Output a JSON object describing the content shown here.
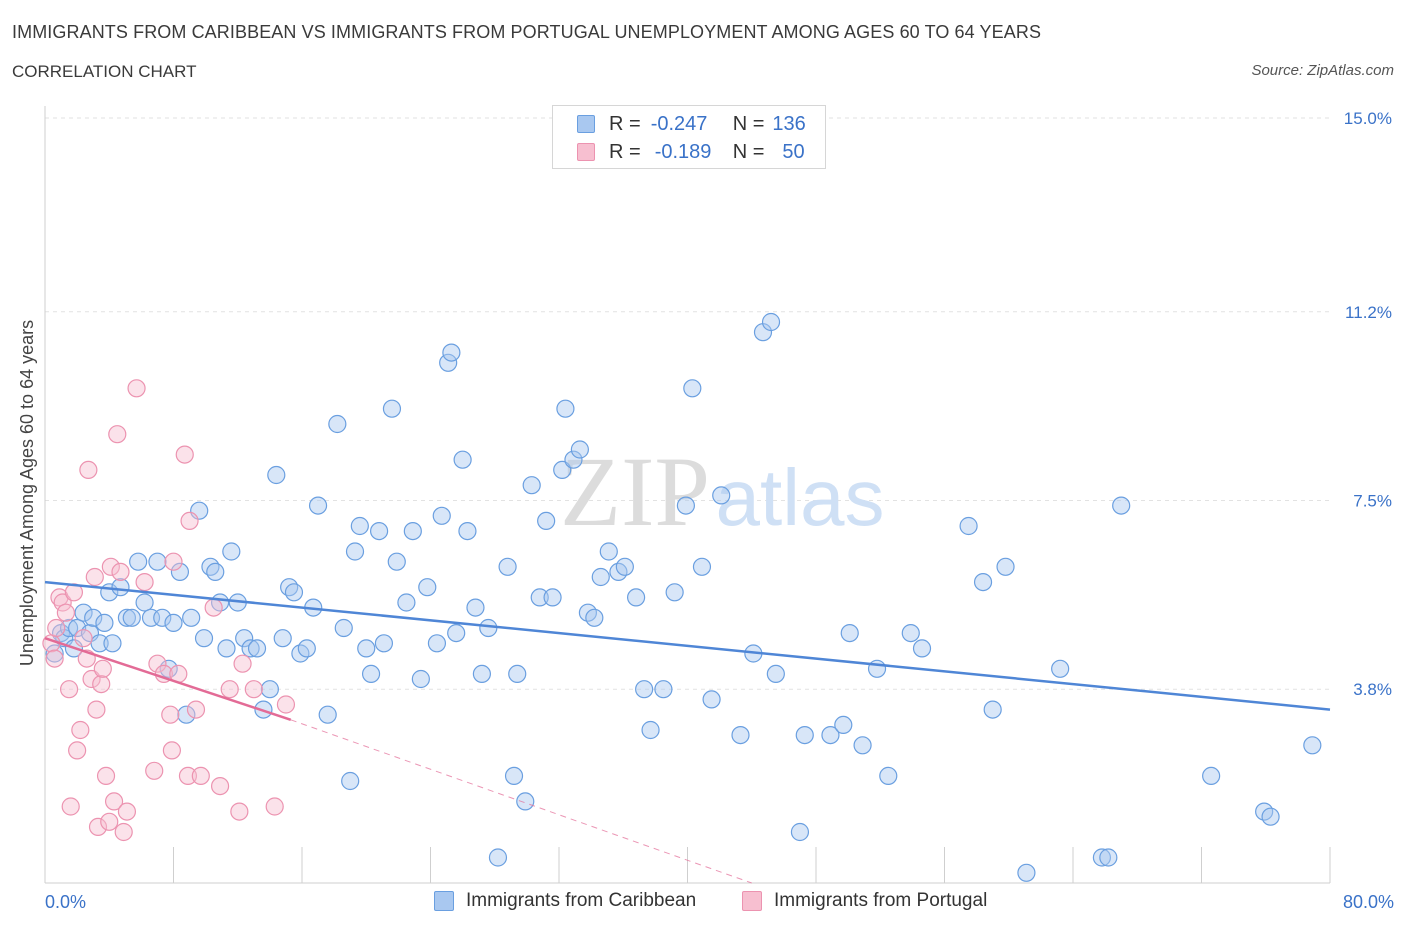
{
  "title": "IMMIGRANTS FROM CARIBBEAN VS IMMIGRANTS FROM PORTUGAL UNEMPLOYMENT AMONG AGES 60 TO 64 YEARS",
  "subtitle": "CORRELATION CHART",
  "source": "Source: ZipAtlas.com",
  "watermark": {
    "zip": "ZIP",
    "atlas": "atlas"
  },
  "legend": {
    "r_label": "R =",
    "n_label": "N =",
    "series": [
      {
        "name": "Immigrants from Caribbean",
        "r": "-0.247",
        "n": "136",
        "fill": "#a9c8f0",
        "stroke": "#6a9fe0"
      },
      {
        "name": "Immigrants from Portugal",
        "r": "-0.189",
        "n": "50",
        "fill": "#f7bfd0",
        "stroke": "#ec93b0"
      }
    ]
  },
  "chart_data": {
    "type": "scatter",
    "title": "IMMIGRANTS FROM CARIBBEAN VS IMMIGRANTS FROM PORTUGAL UNEMPLOYMENT AMONG AGES 60 TO 64 YEARS",
    "xlabel": "",
    "ylabel": "Unemployment Among Ages 60 to 64 years",
    "xlim": [
      0,
      80
    ],
    "ylim": [
      0,
      15
    ],
    "x_tick_labels": [
      "0.0%",
      "80.0%"
    ],
    "y_ticks": [
      3.8,
      7.5,
      11.2,
      15.0
    ],
    "y_tick_labels": [
      "3.8%",
      "7.5%",
      "11.2%",
      "15.0%"
    ],
    "grid": true,
    "legend_position": "top-center",
    "series": [
      {
        "name": "Immigrants from Caribbean",
        "color": "#4f86d6",
        "trend": {
          "x": [
            0,
            80
          ],
          "y": [
            5.9,
            3.4
          ]
        },
        "points": [
          [
            0.6,
            4.5
          ],
          [
            1.0,
            4.9
          ],
          [
            1.2,
            4.8
          ],
          [
            1.5,
            5.0
          ],
          [
            1.8,
            4.6
          ],
          [
            2.0,
            5.0
          ],
          [
            2.4,
            5.3
          ],
          [
            2.8,
            4.9
          ],
          [
            3.0,
            5.2
          ],
          [
            3.4,
            4.7
          ],
          [
            3.7,
            5.1
          ],
          [
            4.0,
            5.7
          ],
          [
            4.2,
            4.7
          ],
          [
            4.7,
            5.8
          ],
          [
            5.1,
            5.2
          ],
          [
            5.4,
            5.2
          ],
          [
            5.8,
            6.3
          ],
          [
            6.2,
            5.5
          ],
          [
            6.6,
            5.2
          ],
          [
            7.0,
            6.3
          ],
          [
            7.3,
            5.2
          ],
          [
            7.7,
            4.2
          ],
          [
            8.0,
            5.1
          ],
          [
            8.4,
            6.1
          ],
          [
            8.8,
            3.3
          ],
          [
            9.1,
            5.2
          ],
          [
            9.6,
            7.3
          ],
          [
            9.9,
            4.8
          ],
          [
            10.3,
            6.2
          ],
          [
            10.6,
            6.1
          ],
          [
            10.9,
            5.5
          ],
          [
            11.3,
            4.6
          ],
          [
            11.6,
            6.5
          ],
          [
            12.0,
            5.5
          ],
          [
            12.4,
            4.8
          ],
          [
            12.8,
            4.6
          ],
          [
            13.2,
            4.6
          ],
          [
            13.6,
            3.4
          ],
          [
            14.0,
            3.8
          ],
          [
            14.4,
            8.0
          ],
          [
            14.8,
            4.8
          ],
          [
            15.2,
            5.8
          ],
          [
            15.5,
            5.7
          ],
          [
            15.9,
            4.5
          ],
          [
            16.3,
            4.6
          ],
          [
            16.7,
            5.4
          ],
          [
            17.0,
            7.4
          ],
          [
            17.6,
            3.3
          ],
          [
            18.2,
            9.0
          ],
          [
            18.6,
            5.0
          ],
          [
            19.0,
            2.0
          ],
          [
            19.3,
            6.5
          ],
          [
            19.6,
            7.0
          ],
          [
            20.0,
            4.6
          ],
          [
            20.3,
            4.1
          ],
          [
            20.8,
            6.9
          ],
          [
            21.1,
            4.7
          ],
          [
            21.6,
            9.3
          ],
          [
            21.9,
            6.3
          ],
          [
            22.5,
            5.5
          ],
          [
            22.9,
            6.9
          ],
          [
            23.4,
            4.0
          ],
          [
            23.8,
            5.8
          ],
          [
            24.4,
            4.7
          ],
          [
            24.7,
            7.2
          ],
          [
            25.1,
            10.2
          ],
          [
            25.3,
            10.4
          ],
          [
            25.6,
            4.9
          ],
          [
            26.0,
            8.3
          ],
          [
            26.3,
            6.9
          ],
          [
            26.8,
            5.4
          ],
          [
            27.2,
            4.1
          ],
          [
            27.6,
            5.0
          ],
          [
            28.2,
            0.5
          ],
          [
            28.8,
            6.2
          ],
          [
            29.2,
            2.1
          ],
          [
            29.4,
            4.1
          ],
          [
            29.9,
            1.6
          ],
          [
            30.3,
            7.8
          ],
          [
            30.8,
            5.6
          ],
          [
            31.2,
            7.1
          ],
          [
            31.6,
            5.6
          ],
          [
            32.2,
            8.1
          ],
          [
            32.4,
            9.3
          ],
          [
            32.9,
            8.3
          ],
          [
            33.3,
            8.5
          ],
          [
            33.8,
            5.3
          ],
          [
            34.2,
            5.2
          ],
          [
            34.6,
            6.0
          ],
          [
            35.1,
            6.5
          ],
          [
            35.7,
            6.1
          ],
          [
            36.1,
            6.2
          ],
          [
            36.8,
            5.6
          ],
          [
            37.3,
            3.8
          ],
          [
            37.7,
            3.0
          ],
          [
            38.5,
            3.8
          ],
          [
            39.2,
            5.7
          ],
          [
            39.9,
            7.4
          ],
          [
            40.3,
            9.7
          ],
          [
            40.9,
            6.2
          ],
          [
            41.5,
            3.6
          ],
          [
            42.1,
            7.6
          ],
          [
            43.3,
            2.9
          ],
          [
            44.1,
            4.5
          ],
          [
            44.7,
            10.8
          ],
          [
            45.2,
            11.0
          ],
          [
            45.5,
            4.1
          ],
          [
            47.0,
            1.0
          ],
          [
            47.3,
            2.9
          ],
          [
            48.9,
            2.9
          ],
          [
            49.7,
            3.1
          ],
          [
            50.1,
            4.9
          ],
          [
            50.9,
            2.7
          ],
          [
            51.8,
            4.2
          ],
          [
            52.5,
            2.1
          ],
          [
            53.9,
            4.9
          ],
          [
            54.6,
            4.6
          ],
          [
            57.5,
            7.0
          ],
          [
            58.4,
            5.9
          ],
          [
            59.0,
            3.4
          ],
          [
            59.8,
            6.2
          ],
          [
            61.1,
            0.2
          ],
          [
            63.2,
            4.2
          ],
          [
            65.8,
            0.5
          ],
          [
            66.2,
            0.5
          ],
          [
            67.0,
            7.4
          ],
          [
            72.6,
            2.1
          ],
          [
            75.9,
            1.4
          ],
          [
            76.3,
            1.3
          ],
          [
            78.9,
            2.7
          ]
        ]
      },
      {
        "name": "Immigrants from Portugal",
        "color": "#e36b96",
        "trend": {
          "x": [
            0,
            15.3
          ],
          "y": [
            4.8,
            3.2
          ]
        },
        "trend_extension": {
          "x": [
            15.3,
            44.0
          ],
          "y": [
            3.2,
            0
          ]
        },
        "points": [
          [
            0.4,
            4.7
          ],
          [
            0.6,
            4.4
          ],
          [
            0.7,
            5.0
          ],
          [
            0.9,
            5.6
          ],
          [
            1.1,
            5.5
          ],
          [
            1.3,
            5.3
          ],
          [
            1.5,
            3.8
          ],
          [
            1.6,
            1.5
          ],
          [
            1.8,
            5.7
          ],
          [
            2.0,
            2.6
          ],
          [
            2.2,
            3.0
          ],
          [
            2.4,
            4.8
          ],
          [
            2.6,
            4.4
          ],
          [
            2.7,
            8.1
          ],
          [
            2.9,
            4.0
          ],
          [
            3.1,
            6.0
          ],
          [
            3.2,
            3.4
          ],
          [
            3.3,
            1.1
          ],
          [
            3.5,
            3.9
          ],
          [
            3.6,
            4.2
          ],
          [
            3.8,
            2.1
          ],
          [
            4.0,
            1.2
          ],
          [
            4.1,
            6.2
          ],
          [
            4.3,
            1.6
          ],
          [
            4.5,
            8.8
          ],
          [
            4.7,
            6.1
          ],
          [
            4.9,
            1.0
          ],
          [
            5.1,
            1.4
          ],
          [
            5.7,
            9.7
          ],
          [
            6.2,
            5.9
          ],
          [
            6.8,
            2.2
          ],
          [
            7.0,
            4.3
          ],
          [
            7.4,
            4.1
          ],
          [
            7.8,
            3.3
          ],
          [
            7.9,
            2.6
          ],
          [
            8.0,
            6.3
          ],
          [
            8.3,
            4.1
          ],
          [
            8.7,
            8.4
          ],
          [
            8.9,
            2.1
          ],
          [
            9.0,
            7.1
          ],
          [
            9.4,
            3.4
          ],
          [
            9.7,
            2.1
          ],
          [
            10.5,
            5.4
          ],
          [
            10.9,
            1.9
          ],
          [
            11.5,
            3.8
          ],
          [
            12.1,
            1.4
          ],
          [
            12.3,
            4.3
          ],
          [
            13.0,
            3.8
          ],
          [
            14.3,
            1.5
          ],
          [
            15.0,
            3.5
          ]
        ]
      }
    ]
  }
}
